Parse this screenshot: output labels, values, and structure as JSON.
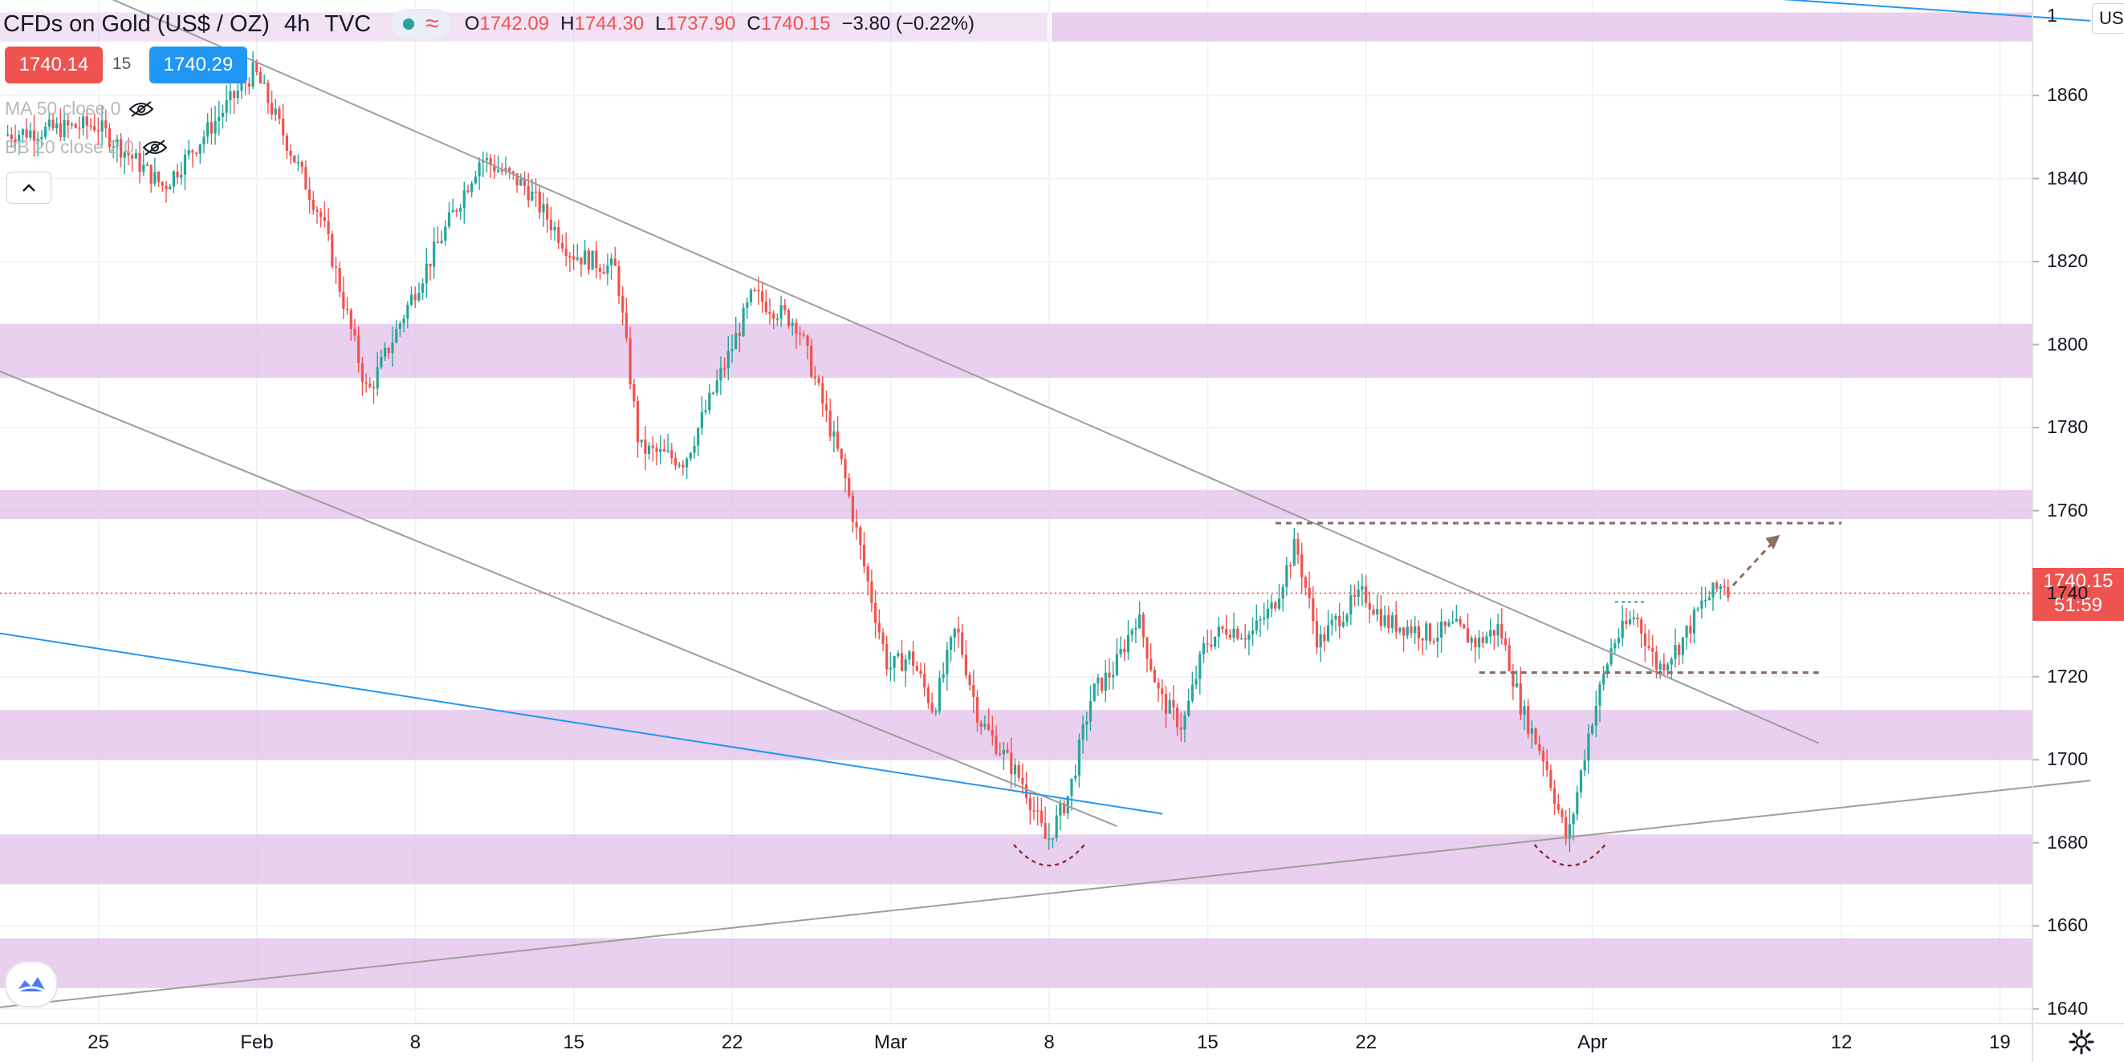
{
  "header": {
    "symbol": "CFDs on Gold (US$ / OZ)",
    "interval": "4h",
    "source": "TVC",
    "status_wave": "≈",
    "open_label": "O",
    "open": "1742.09",
    "high_label": "H",
    "high": "1744.30",
    "low_label": "L",
    "low": "1737.90",
    "close_label": "C",
    "close": "1740.15",
    "change": "−3.80 (−0.22%)"
  },
  "quote": {
    "bid": "1740.14",
    "spread": "15",
    "ask": "1740.29"
  },
  "indicators": {
    "ma": "MA 50 close 0",
    "bb": "BB 20 close 2 0"
  },
  "price_axis": {
    "currency": "USD",
    "last_price": "1740.15",
    "countdown": "51:59",
    "top_partial_label": "1"
  },
  "colors": {
    "up": "#26a69a",
    "down": "#ef5350",
    "zone": "#e1bee7",
    "trendline": "#9e9e9e",
    "blue_trendline": "#2196f3",
    "annotation": "#8d6e63"
  },
  "icons": {
    "hide": "eye-off-icon",
    "collapse": "chevron-up-icon",
    "settings": "gear-icon",
    "logo": "tradingview-logo-icon"
  },
  "chart_data": {
    "type": "candlestick",
    "ylim": [
      1633,
      1883
    ],
    "x_tick_labels": [
      "25",
      "Feb",
      "8",
      "15",
      "22",
      "Mar",
      "8",
      "15",
      "22",
      "Apr",
      "12",
      "19"
    ],
    "y_tick_labels": [
      "1640",
      "1660",
      "1680",
      "1700",
      "1720",
      "1740",
      "1760",
      "1780",
      "1800",
      "1820",
      "1840",
      "1860"
    ],
    "zones": [
      {
        "from": 1873,
        "to": 1880
      },
      {
        "from": 1792,
        "to": 1805
      },
      {
        "from": 1758,
        "to": 1765
      },
      {
        "from": 1700,
        "to": 1712
      },
      {
        "from": 1670,
        "to": 1682
      },
      {
        "from": 1645,
        "to": 1657
      }
    ],
    "path_points": [
      {
        "date": "2021-01-20",
        "price": 1850
      },
      {
        "date": "2021-01-25",
        "price": 1853
      },
      {
        "date": "2021-01-28",
        "price": 1838
      },
      {
        "date": "2021-02-01",
        "price": 1866
      },
      {
        "date": "2021-02-04",
        "price": 1830
      },
      {
        "date": "2021-02-06",
        "price": 1788
      },
      {
        "date": "2021-02-08",
        "price": 1812
      },
      {
        "date": "2021-02-11",
        "price": 1845
      },
      {
        "date": "2021-02-13",
        "price": 1838
      },
      {
        "date": "2021-02-15",
        "price": 1822
      },
      {
        "date": "2021-02-17",
        "price": 1818
      },
      {
        "date": "2021-02-18",
        "price": 1775
      },
      {
        "date": "2021-02-20",
        "price": 1772
      },
      {
        "date": "2021-02-22",
        "price": 1798
      },
      {
        "date": "2021-02-23",
        "price": 1812
      },
      {
        "date": "2021-02-25",
        "price": 1805
      },
      {
        "date": "2021-02-27",
        "price": 1770
      },
      {
        "date": "2021-02-28",
        "price": 1745
      },
      {
        "date": "2021-03-01",
        "price": 1722
      },
      {
        "date": "2021-03-02",
        "price": 1725
      },
      {
        "date": "2021-03-03",
        "price": 1712
      },
      {
        "date": "2021-03-04",
        "price": 1732
      },
      {
        "date": "2021-03-05",
        "price": 1710
      },
      {
        "date": "2021-03-07",
        "price": 1694
      },
      {
        "date": "2021-03-08",
        "price": 1680
      },
      {
        "date": "2021-03-09",
        "price": 1692
      },
      {
        "date": "2021-03-10",
        "price": 1716
      },
      {
        "date": "2021-03-11",
        "price": 1722
      },
      {
        "date": "2021-03-12",
        "price": 1735
      },
      {
        "date": "2021-03-13",
        "price": 1715
      },
      {
        "date": "2021-03-14",
        "price": 1708
      },
      {
        "date": "2021-03-15",
        "price": 1728
      },
      {
        "date": "2021-03-16",
        "price": 1732
      },
      {
        "date": "2021-03-17",
        "price": 1730
      },
      {
        "date": "2021-03-18",
        "price": 1737
      },
      {
        "date": "2021-03-19",
        "price": 1752
      },
      {
        "date": "2021-03-20",
        "price": 1728
      },
      {
        "date": "2021-03-21",
        "price": 1735
      },
      {
        "date": "2021-03-22",
        "price": 1740
      },
      {
        "date": "2021-03-23",
        "price": 1733
      },
      {
        "date": "2021-03-24",
        "price": 1732
      },
      {
        "date": "2021-03-25",
        "price": 1730
      },
      {
        "date": "2021-03-26",
        "price": 1732
      },
      {
        "date": "2021-03-27",
        "price": 1728
      },
      {
        "date": "2021-03-28",
        "price": 1732
      },
      {
        "date": "2021-03-29",
        "price": 1712
      },
      {
        "date": "2021-03-30",
        "price": 1700
      },
      {
        "date": "2021-03-31",
        "price": 1680
      },
      {
        "date": "2021-04-01",
        "price": 1708
      },
      {
        "date": "2021-04-02",
        "price": 1728
      },
      {
        "date": "2021-04-03",
        "price": 1735
      },
      {
        "date": "2021-04-04",
        "price": 1722
      },
      {
        "date": "2021-04-05",
        "price": 1728
      },
      {
        "date": "2021-04-06",
        "price": 1738
      },
      {
        "date": "2021-04-07",
        "price": 1743
      },
      {
        "date": "2021-04-07",
        "price": 1740
      }
    ],
    "trendlines": [
      {
        "kind": "gray",
        "from": {
          "date": "2021-01-24",
          "price": 1887
        },
        "to": {
          "date": "2021-04-11",
          "price": 1704
        }
      },
      {
        "kind": "gray",
        "from": {
          "date": "2021-01-20",
          "price": 1795
        },
        "to": {
          "date": "2021-03-11",
          "price": 1684
        }
      },
      {
        "kind": "gray",
        "from": {
          "date": "2021-01-20",
          "price": 1640
        },
        "to": {
          "date": "2021-04-23",
          "price": 1695
        }
      },
      {
        "kind": "blue",
        "from": {
          "date": "2021-01-20",
          "price": 1731
        },
        "to": {
          "date": "2021-03-13",
          "price": 1687
        }
      },
      {
        "kind": "blue",
        "from": {
          "date": "2021-04-02",
          "price": 1886
        },
        "to": {
          "date": "2021-04-23",
          "price": 1878
        }
      }
    ],
    "horizontal_levels": [
      {
        "price": 1757,
        "from_date": "2021-03-18",
        "to_date": "2021-04-12",
        "style": "dashed"
      },
      {
        "price": 1721,
        "from_date": "2021-03-27",
        "to_date": "2021-04-11",
        "style": "dashed"
      }
    ],
    "current_price_line": 1740.15
  }
}
